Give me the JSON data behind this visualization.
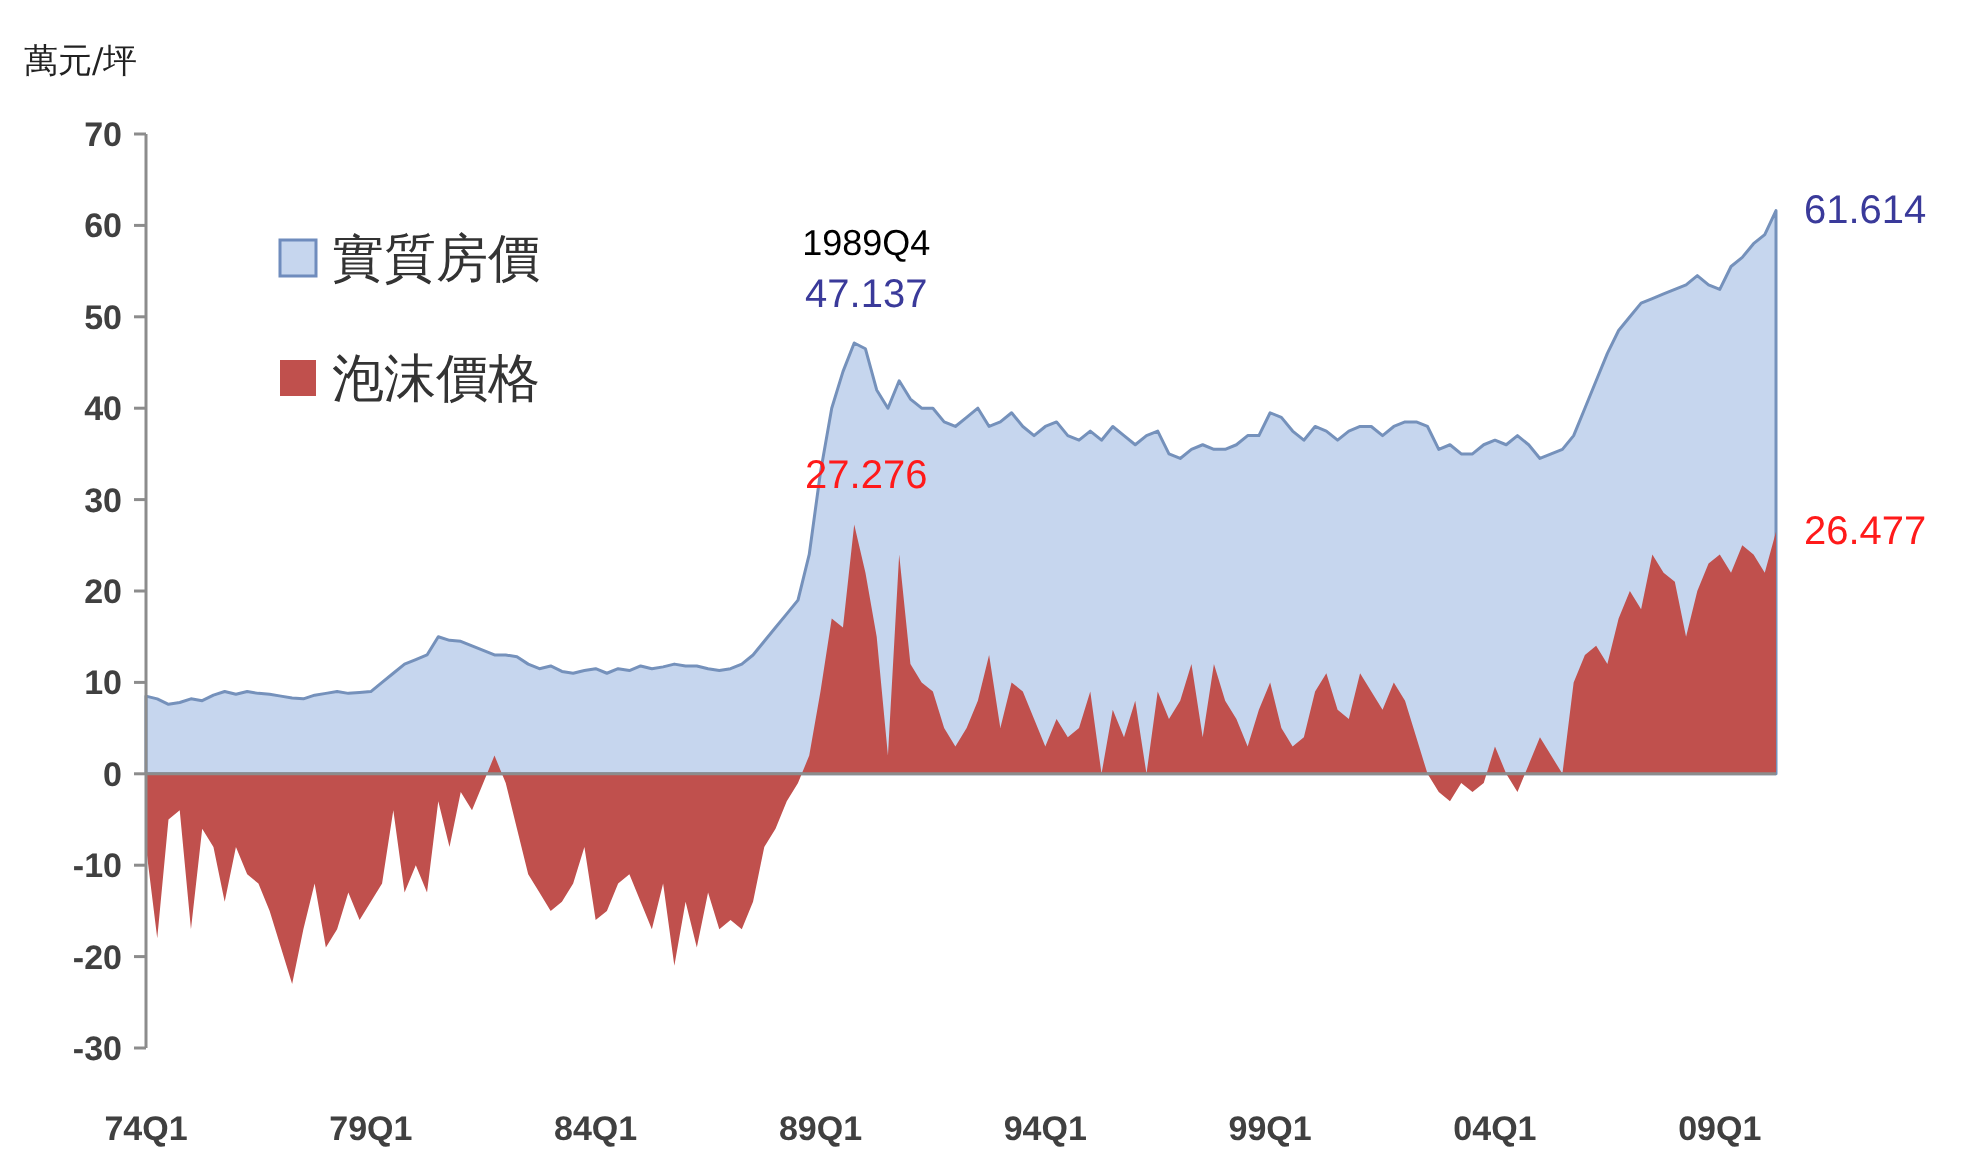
{
  "chart_data": {
    "type": "area",
    "ylabel": "萬元/坪",
    "categories": [
      "74Q1",
      null,
      null,
      null,
      null,
      null,
      null,
      null,
      null,
      null,
      null,
      null,
      null,
      null,
      null,
      null,
      null,
      null,
      null,
      null,
      "79Q1",
      null,
      null,
      null,
      null,
      null,
      null,
      null,
      null,
      null,
      null,
      null,
      null,
      null,
      null,
      null,
      null,
      null,
      null,
      null,
      "84Q1",
      null,
      null,
      null,
      null,
      null,
      null,
      null,
      null,
      null,
      null,
      null,
      null,
      null,
      null,
      null,
      null,
      null,
      null,
      null,
      "89Q1",
      null,
      null,
      null,
      null,
      null,
      null,
      null,
      null,
      null,
      null,
      null,
      null,
      null,
      null,
      null,
      null,
      null,
      null,
      null,
      "94Q1",
      null,
      null,
      null,
      null,
      null,
      null,
      null,
      null,
      null,
      null,
      null,
      null,
      null,
      null,
      null,
      null,
      null,
      null,
      null,
      "99Q1",
      null,
      null,
      null,
      null,
      null,
      null,
      null,
      null,
      null,
      null,
      null,
      null,
      null,
      null,
      null,
      null,
      null,
      null,
      null,
      "04Q1",
      null,
      null,
      null,
      null,
      null,
      null,
      null,
      null,
      null,
      null,
      null,
      null,
      null,
      null,
      null,
      null,
      null,
      null,
      null,
      "09Q1",
      null,
      null,
      null,
      null,
      null
    ],
    "series": [
      {
        "name": "實質房價",
        "color": "#c6d6ee",
        "values": [
          8.5,
          8.2,
          7.6,
          7.8,
          8.2,
          8.0,
          8.6,
          9.0,
          8.7,
          9.0,
          8.8,
          8.7,
          8.5,
          8.3,
          8.2,
          8.6,
          8.8,
          9.0,
          8.8,
          8.9,
          9.0,
          10.0,
          11.0,
          12.0,
          12.5,
          13.0,
          15.0,
          14.6,
          14.5,
          14.0,
          13.5,
          13.0,
          13.0,
          12.8,
          12.0,
          11.5,
          11.8,
          11.2,
          11.0,
          11.3,
          11.5,
          11.0,
          11.5,
          11.3,
          11.8,
          11.5,
          11.7,
          12.0,
          11.8,
          11.8,
          11.5,
          11.3,
          11.5,
          12.0,
          13.0,
          14.5,
          16.0,
          17.5,
          19.0,
          24.0,
          33.0,
          40.0,
          44.0,
          47.137,
          46.5,
          42.0,
          40.0,
          43.0,
          41.0,
          40.0,
          40.0,
          38.5,
          38.0,
          39.0,
          40.0,
          38.0,
          38.5,
          39.5,
          38.0,
          37.0,
          38.0,
          38.5,
          37.0,
          36.5,
          37.5,
          36.5,
          38.0,
          37.0,
          36.0,
          37.0,
          37.5,
          35.0,
          34.5,
          35.5,
          36.0,
          35.5,
          35.5,
          36.0,
          37.0,
          37.0,
          39.5,
          39.0,
          37.5,
          36.5,
          38.0,
          37.5,
          36.5,
          37.5,
          38.0,
          38.0,
          37.0,
          38.0,
          38.5,
          38.5,
          38.0,
          35.5,
          36.0,
          35.0,
          35.0,
          36.0,
          36.5,
          36.0,
          37.0,
          36.0,
          34.5,
          35.0,
          35.5,
          37.0,
          40.0,
          43.0,
          46.0,
          48.5,
          50.0,
          51.5,
          52.0,
          52.5,
          53.0,
          53.5,
          54.5,
          53.5,
          53.0,
          55.5,
          56.5,
          58.0,
          59.0,
          61.614
        ],
        "value_labels": [
          null,
          null,
          null,
          null,
          null,
          null,
          null,
          null,
          null,
          null,
          null,
          null,
          null,
          null,
          null,
          null,
          null,
          null,
          null,
          null,
          null,
          null,
          null,
          null,
          null,
          null,
          null,
          null,
          null,
          null,
          null,
          null,
          null,
          null,
          null,
          null,
          null,
          null,
          null,
          null,
          null,
          null,
          null,
          null,
          null,
          null,
          null,
          null,
          null,
          null,
          null,
          null,
          null,
          null,
          null,
          null,
          null,
          null,
          null,
          null,
          null,
          null,
          null,
          "47.137",
          null,
          null,
          null,
          null,
          null,
          null,
          null,
          null,
          null,
          null,
          null,
          null,
          null,
          null,
          null,
          null,
          null,
          null,
          null,
          null,
          null,
          null,
          null,
          null,
          null,
          null,
          null,
          null,
          null,
          null,
          null,
          null,
          null,
          null,
          null,
          null,
          null,
          null,
          null,
          null,
          null,
          null,
          null,
          null,
          null,
          null,
          null,
          null,
          null,
          null,
          null,
          null,
          null,
          null,
          null,
          null,
          null,
          null,
          null,
          null,
          null,
          null,
          null,
          null,
          null,
          null,
          null,
          null,
          null,
          null,
          null,
          null,
          null,
          null,
          null,
          null,
          null,
          null,
          null,
          null,
          null,
          "61.614"
        ]
      },
      {
        "name": "泡沫價格",
        "color": "#c0504d",
        "values": [
          -8,
          -18,
          -5,
          -4,
          -17,
          -6,
          -8,
          -14,
          -8,
          -11,
          -12,
          -15,
          -19,
          -23,
          -17,
          -12,
          -19,
          -17,
          -13,
          -16,
          -14,
          -12,
          -4,
          -13,
          -10,
          -13,
          -3,
          -8,
          -2,
          -4,
          -1,
          2,
          -1,
          -6,
          -11,
          -13,
          -15,
          -14,
          -12,
          -8,
          -16,
          -15,
          -12,
          -11,
          -14,
          -17,
          -12,
          -21,
          -14,
          -19,
          -13,
          -17,
          -16,
          -17,
          -14,
          -8,
          -6,
          -3,
          -1,
          2,
          9,
          17,
          16,
          27.276,
          22,
          15,
          2,
          24,
          12,
          10,
          9,
          5,
          3,
          5,
          8,
          13,
          5,
          10,
          9,
          6,
          3,
          6,
          4,
          5,
          9,
          0,
          7,
          4,
          8,
          0,
          9,
          6,
          8,
          12,
          4,
          12,
          8,
          6,
          3,
          7,
          10,
          5,
          3,
          4,
          9,
          11,
          7,
          6,
          11,
          9,
          7,
          10,
          8,
          4,
          0,
          -2,
          -3,
          -1,
          -2,
          -1,
          3,
          0,
          -2,
          1,
          4,
          2,
          0,
          10,
          13,
          14,
          12,
          17,
          20,
          18,
          24,
          22,
          21,
          15,
          20,
          23,
          24,
          22,
          25,
          24,
          22,
          26.477
        ],
        "value_labels": [
          null,
          null,
          null,
          null,
          null,
          null,
          null,
          null,
          null,
          null,
          null,
          null,
          null,
          null,
          null,
          null,
          null,
          null,
          null,
          null,
          null,
          null,
          null,
          null,
          null,
          null,
          null,
          null,
          null,
          null,
          null,
          null,
          null,
          null,
          null,
          null,
          null,
          null,
          null,
          null,
          null,
          null,
          null,
          null,
          null,
          null,
          null,
          null,
          null,
          null,
          null,
          null,
          null,
          null,
          null,
          null,
          null,
          null,
          null,
          null,
          null,
          null,
          null,
          "27.276",
          null,
          null,
          null,
          null,
          null,
          null,
          null,
          null,
          null,
          null,
          null,
          null,
          null,
          null,
          null,
          null,
          null,
          null,
          null,
          null,
          null,
          null,
          null,
          null,
          null,
          null,
          null,
          null,
          null,
          null,
          null,
          null,
          null,
          null,
          null,
          null,
          null,
          null,
          null,
          null,
          null,
          null,
          null,
          null,
          null,
          null,
          null,
          null,
          null,
          null,
          null,
          null,
          null,
          null,
          null,
          null,
          null,
          null,
          null,
          null,
          null,
          null,
          null,
          null,
          null,
          null,
          null,
          null,
          null,
          null,
          null,
          null,
          null,
          null,
          null,
          null,
          null,
          null,
          null,
          null,
          null,
          "26.477"
        ]
      }
    ],
    "annotations": [
      {
        "text": "1989Q4",
        "y": 47.137
      }
    ],
    "ylim": [
      -30,
      70
    ],
    "yticks": [
      -30,
      -20,
      -10,
      0,
      10,
      20,
      30,
      40,
      50,
      60,
      70
    ],
    "legend": "top left"
  }
}
